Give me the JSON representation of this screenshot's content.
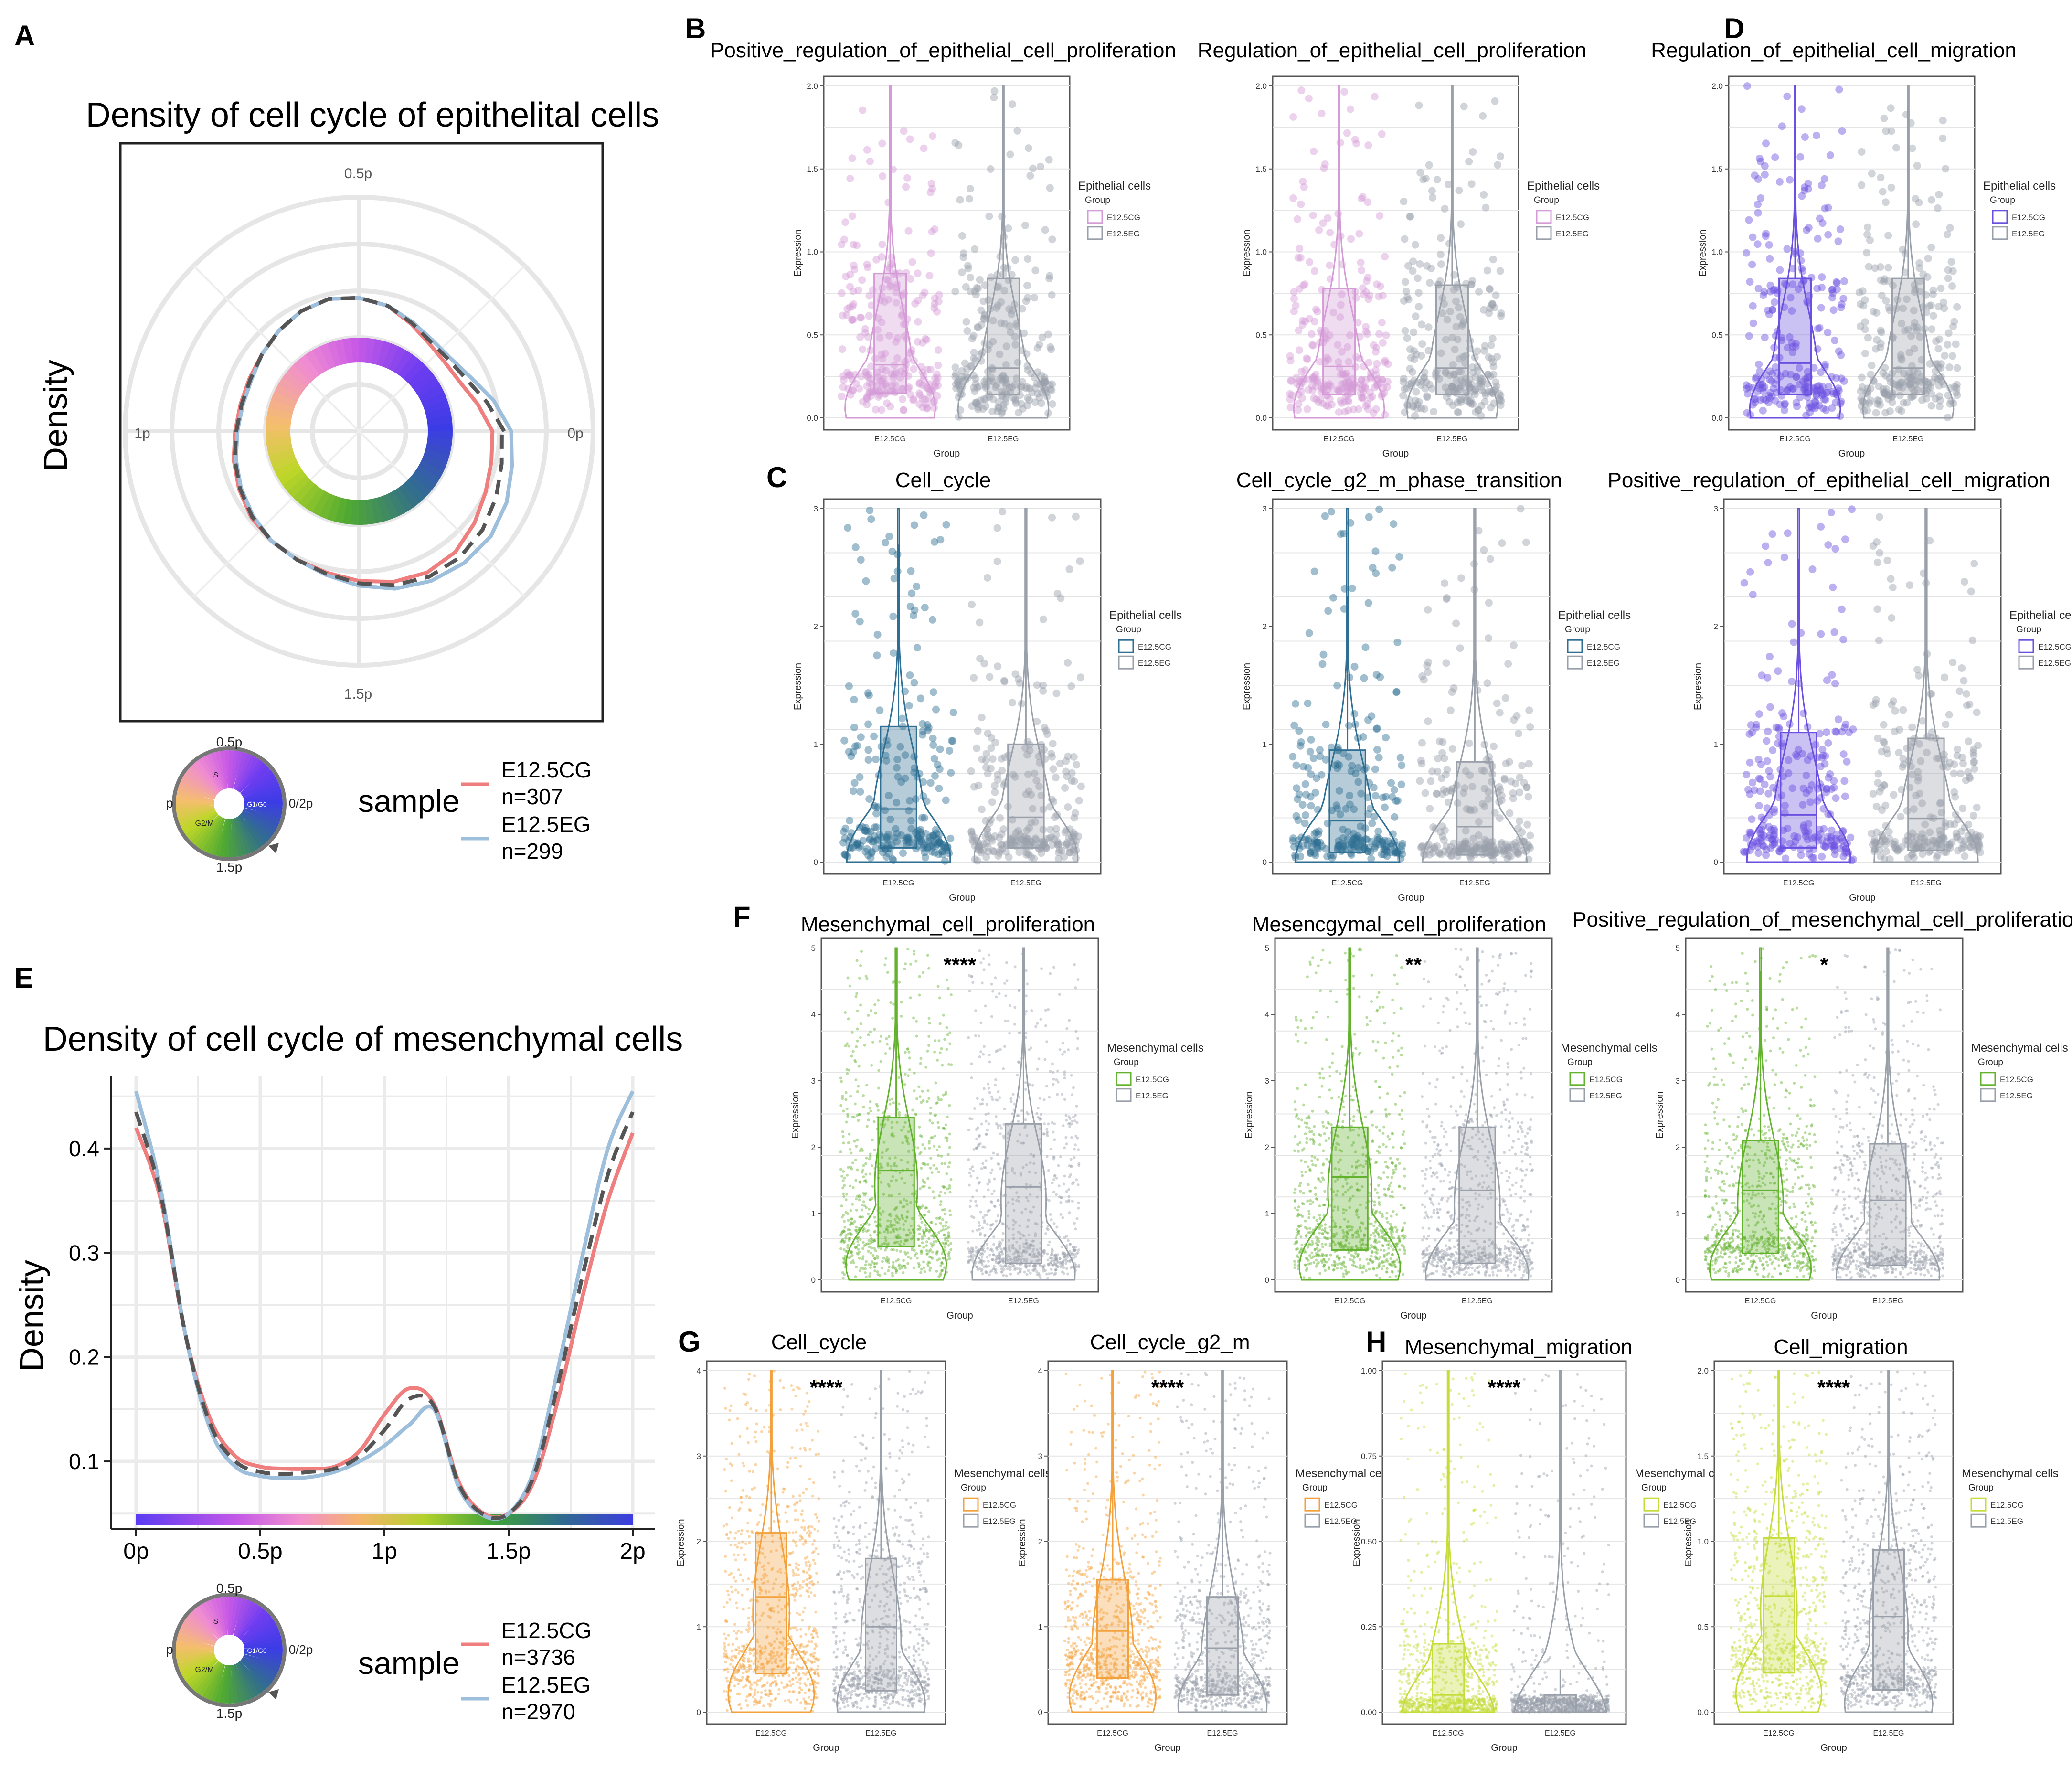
{
  "figure": {
    "colors": {
      "cg": "#ef7f7f",
      "eg": "#9dbfdc",
      "pooled": "#555555",
      "grey": "#9aa0aa",
      "B": "#d59bd6",
      "C": "#2f6f93",
      "D": "#6a4fe0",
      "F": "#63b22e",
      "G": "#f3a13c",
      "H": "#c5dc3a"
    }
  },
  "chart_data": [
    {
      "id": "A",
      "type": "polar-density",
      "panel_label": "A",
      "title": "Density of cell cycle of epithelital cells",
      "ylabel": "Density",
      "angle_labels": [
        "0.5p",
        "1p",
        "1.5p",
        "0p"
      ],
      "legend_title": "sample",
      "legend": [
        {
          "label": "E12.5CG",
          "n": "n=307"
        },
        {
          "label": "E12.5EG",
          "n": "n=299"
        }
      ],
      "series": [
        {
          "name": "E12.5CG",
          "radius": [
            0.57,
            0.52,
            0.48,
            0.47,
            0.48,
            0.51,
            0.55,
            0.57,
            0.58,
            0.57,
            0.55,
            0.53,
            0.52,
            0.52,
            0.53,
            0.55,
            0.57,
            0.59,
            0.6,
            0.61,
            0.62,
            0.64,
            0.66,
            0.67,
            0.66,
            0.63,
            0.6,
            0.58,
            0.57
          ]
        },
        {
          "name": "E12.5EG",
          "radius": [
            0.65,
            0.59,
            0.53,
            0.5,
            0.5,
            0.52,
            0.55,
            0.57,
            0.58,
            0.57,
            0.55,
            0.53,
            0.51,
            0.51,
            0.52,
            0.54,
            0.56,
            0.58,
            0.6,
            0.61,
            0.63,
            0.66,
            0.69,
            0.71,
            0.72,
            0.72,
            0.7,
            0.67,
            0.65
          ]
        },
        {
          "name": "pooled",
          "radius": [
            0.62,
            0.56,
            0.51,
            0.49,
            0.49,
            0.515,
            0.55,
            0.57,
            0.58,
            0.57,
            0.55,
            0.53,
            0.515,
            0.515,
            0.525,
            0.545,
            0.565,
            0.585,
            0.6,
            0.61,
            0.625,
            0.65,
            0.675,
            0.69,
            0.69,
            0.675,
            0.65,
            0.625,
            0.61
          ]
        }
      ]
    },
    {
      "id": "E",
      "type": "line",
      "panel_label": "E",
      "title": "Density of cell cycle of mesenchymal cells",
      "ylabel": "Density",
      "x": [
        0,
        0.1,
        0.2,
        0.3,
        0.4,
        0.5,
        0.6,
        0.7,
        0.8,
        0.9,
        1.0,
        1.1,
        1.2,
        1.3,
        1.4,
        1.5,
        1.6,
        1.7,
        1.8,
        1.9,
        2.0
      ],
      "xticks": [
        "0p",
        "0.5p",
        "1p",
        "1.5p",
        "2p"
      ],
      "yticks": [
        "0.1",
        "0.2",
        "0.3",
        "0.4"
      ],
      "ylim": [
        0.035,
        0.47
      ],
      "legend_title": "sample",
      "legend": [
        {
          "label": "E12.5CG",
          "n": "n=3736"
        },
        {
          "label": "E12.5EG",
          "n": "n=2970"
        }
      ],
      "series": [
        {
          "name": "E12.5CG",
          "values": [
            0.42,
            0.35,
            0.22,
            0.14,
            0.105,
            0.095,
            0.093,
            0.093,
            0.095,
            0.11,
            0.145,
            0.17,
            0.155,
            0.08,
            0.05,
            0.05,
            0.08,
            0.16,
            0.26,
            0.35,
            0.415
          ]
        },
        {
          "name": "E12.5EG",
          "values": [
            0.455,
            0.36,
            0.22,
            0.13,
            0.095,
            0.086,
            0.084,
            0.085,
            0.09,
            0.1,
            0.115,
            0.135,
            0.15,
            0.075,
            0.048,
            0.05,
            0.09,
            0.19,
            0.3,
            0.4,
            0.455
          ]
        },
        {
          "name": "pooled",
          "values": [
            0.435,
            0.355,
            0.22,
            0.135,
            0.1,
            0.09,
            0.088,
            0.09,
            0.093,
            0.105,
            0.13,
            0.16,
            0.153,
            0.078,
            0.049,
            0.05,
            0.085,
            0.175,
            0.28,
            0.375,
            0.435
          ]
        }
      ]
    },
    {
      "id": "violins",
      "type": "violin-box",
      "common": {
        "xlabel": "Group",
        "ylabel": "Expression",
        "legend_subtitle": "Group",
        "groups": [
          "E12.5CG",
          "E12.5EG"
        ]
      },
      "panels": [
        {
          "key": "B1",
          "label": "B",
          "title": "Positive_regulation_of_epithelial_cell_proliferation",
          "legend_title": "Epithelial cells",
          "color": "B",
          "ymax": 2.0,
          "yticks": [
            0,
            0.5,
            1.0,
            1.5,
            2.0
          ],
          "ytick_labels": [
            "0.0",
            "0.5",
            "1.0",
            "1.5",
            "2.0"
          ],
          "sig": "",
          "box": [
            [
              0.15,
              0.32,
              0.87
            ],
            [
              0.14,
              0.3,
              0.84
            ]
          ],
          "small": false
        },
        {
          "key": "B2",
          "label": "",
          "title": "Regulation_of_epithelial_cell_proliferation",
          "legend_title": "Epithelial cells",
          "color": "B",
          "ymax": 2.0,
          "yticks": [
            0,
            0.5,
            1.0,
            1.5,
            2.0
          ],
          "ytick_labels": [
            "0.0",
            "0.5",
            "1.0",
            "1.5",
            "2.0"
          ],
          "sig": "",
          "box": [
            [
              0.14,
              0.31,
              0.78
            ],
            [
              0.14,
              0.3,
              0.8
            ]
          ],
          "small": false
        },
        {
          "key": "D",
          "label": "D",
          "title": "Regulation_of_epithelial_cell_migration",
          "legend_title": "Epithelial cells",
          "color": "D",
          "ymax": 2.0,
          "yticks": [
            0,
            0.5,
            1.0,
            1.5,
            2.0
          ],
          "ytick_labels": [
            "0.0",
            "0.5",
            "1.0",
            "1.5",
            "2.0"
          ],
          "sig": "",
          "box": [
            [
              0.14,
              0.33,
              0.84
            ],
            [
              0.14,
              0.3,
              0.84
            ]
          ],
          "small": false
        },
        {
          "key": "C1",
          "label": "C",
          "title": "Cell_cycle",
          "legend_title": "Epithelial cells",
          "color": "C",
          "ymax": 3.0,
          "yticks": [
            0,
            1,
            2,
            3
          ],
          "ytick_labels": [
            "0",
            "1",
            "2",
            "3"
          ],
          "sig": "",
          "box": [
            [
              0.12,
              0.45,
              1.15
            ],
            [
              0.12,
              0.38,
              1.0
            ]
          ],
          "small": false
        },
        {
          "key": "C2",
          "label": "",
          "title": "Cell_cycle_g2_m_phase_transition",
          "legend_title": "Epithelial cells",
          "color": "C",
          "ymax": 3.0,
          "yticks": [
            0,
            1,
            2,
            3
          ],
          "ytick_labels": [
            "0",
            "1",
            "2",
            "3"
          ],
          "sig": "",
          "box": [
            [
              0.08,
              0.35,
              0.95
            ],
            [
              0.06,
              0.3,
              0.85
            ]
          ],
          "small": false
        },
        {
          "key": "C3",
          "label": "",
          "title": "Positive_regulation_of_epithelial_cell_migration",
          "legend_title": "Epithelial cells",
          "color": "D",
          "ymax": 3.0,
          "yticks": [
            0,
            1,
            2,
            3
          ],
          "ytick_labels": [
            "0",
            "1",
            "2",
            "3"
          ],
          "sig": "",
          "box": [
            [
              0.12,
              0.4,
              1.1
            ],
            [
              0.1,
              0.37,
              1.05
            ]
          ],
          "small": false
        },
        {
          "key": "F1",
          "label": "F",
          "title": "Mesenchymal_cell_proliferation",
          "legend_title": "Mesenchymal cells",
          "color": "F",
          "ymax": 5.0,
          "yticks": [
            0,
            1,
            2,
            3,
            4,
            5
          ],
          "ytick_labels": [
            "0",
            "1",
            "2",
            "3",
            "4",
            "5"
          ],
          "sig": "****",
          "box": [
            [
              0.5,
              1.65,
              2.45
            ],
            [
              0.25,
              1.4,
              2.35
            ]
          ],
          "small": true
        },
        {
          "key": "F2",
          "label": "",
          "title": "Mesencgymal_cell_proliferation",
          "legend_title": "Mesenchymal cells",
          "color": "F",
          "ymax": 5.0,
          "yticks": [
            0,
            1,
            2,
            3,
            4,
            5
          ],
          "ytick_labels": [
            "0",
            "1",
            "2",
            "3",
            "4",
            "5"
          ],
          "sig": "**",
          "box": [
            [
              0.45,
              1.55,
              2.3
            ],
            [
              0.25,
              1.35,
              2.3
            ]
          ],
          "small": true
        },
        {
          "key": "F3",
          "label": "",
          "title": "Positive_regulation_of_mesenchymal_cell_proliferation",
          "legend_title": "Mesenchymal cells",
          "color": "F",
          "ymax": 5.0,
          "yticks": [
            0,
            1,
            2,
            3,
            4,
            5
          ],
          "ytick_labels": [
            "0",
            "1",
            "2",
            "3",
            "4",
            "5"
          ],
          "sig": "*",
          "box": [
            [
              0.4,
              1.35,
              2.1
            ],
            [
              0.22,
              1.2,
              2.05
            ]
          ],
          "small": true
        },
        {
          "key": "G1",
          "label": "G",
          "title": "Cell_cycle",
          "legend_title": "Mesenchymal cells",
          "color": "G",
          "ymax": 4.0,
          "yticks": [
            0,
            1,
            2,
            3,
            4
          ],
          "ytick_labels": [
            "0",
            "1",
            "2",
            "3",
            "4"
          ],
          "sig": "****",
          "box": [
            [
              0.45,
              1.35,
              2.1
            ],
            [
              0.25,
              1.0,
              1.8
            ]
          ],
          "small": true
        },
        {
          "key": "G2",
          "label": "",
          "title": "Cell_cycle_g2_m",
          "legend_title": "Mesenchymal cells",
          "color": "G",
          "ymax": 4.0,
          "yticks": [
            0,
            1,
            2,
            3,
            4
          ],
          "ytick_labels": [
            "0",
            "1",
            "2",
            "3",
            "4"
          ],
          "sig": "****",
          "box": [
            [
              0.4,
              0.95,
              1.55
            ],
            [
              0.2,
              0.75,
              1.35
            ]
          ],
          "small": true
        },
        {
          "key": "H1",
          "label": "H",
          "title": "Mesenchymal_migration",
          "legend_title": "Mesenchymal cells",
          "color": "H",
          "ymax": 1.0,
          "yticks": [
            0,
            0.25,
            0.5,
            0.75,
            1.0
          ],
          "ytick_labels": [
            "0.00",
            "0.25",
            "0.50",
            "0.75",
            "1.00"
          ],
          "sig": "****",
          "box": [
            [
              0.0,
              0.05,
              0.2
            ],
            [
              0.0,
              0.0,
              0.05
            ]
          ],
          "small": true
        },
        {
          "key": "H2",
          "label": "",
          "title": "Cell_migration",
          "legend_title": "Mesenchymal cells",
          "color": "H",
          "ymax": 2.0,
          "yticks": [
            0,
            0.5,
            1.0,
            1.5,
            2.0
          ],
          "ytick_labels": [
            "0.0",
            "0.5",
            "1.0",
            "1.5",
            "2.0"
          ],
          "sig": "****",
          "box": [
            [
              0.23,
              0.68,
              1.02
            ],
            [
              0.13,
              0.56,
              0.95
            ]
          ],
          "small": true
        }
      ]
    }
  ]
}
